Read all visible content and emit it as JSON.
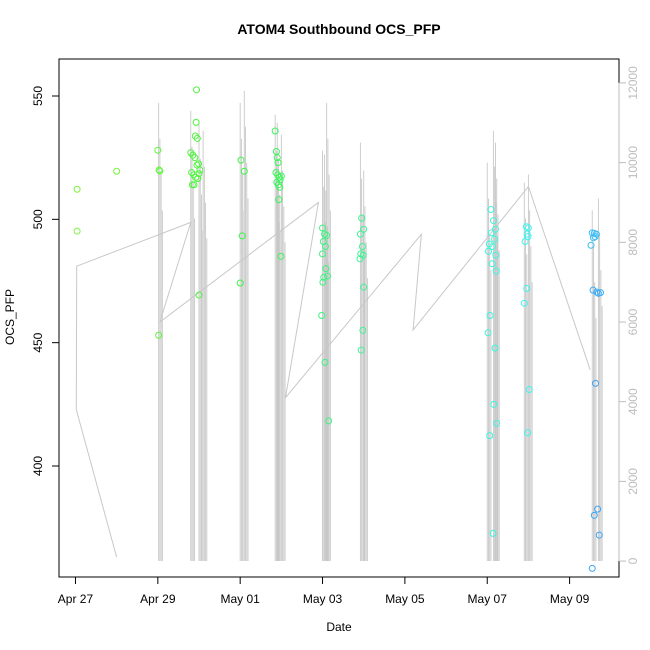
{
  "chart_data": {
    "type": "scatter",
    "title": "ATOM4 Southbound OCS_PFP",
    "xlabel": "Date",
    "ylabel": "OCS_PFP",
    "x_ticks": [
      "Apr 27",
      "Apr 29",
      "May 01",
      "May 03",
      "May 05",
      "May 07",
      "May 09"
    ],
    "x_tick_days": [
      0,
      2,
      4,
      6,
      8,
      10,
      12
    ],
    "xlim_days": [
      -0.4,
      13.2
    ],
    "y_ticks": [
      400,
      450,
      500,
      550
    ],
    "ylim": [
      355,
      565
    ],
    "y2_ticks": [
      0,
      2000,
      4000,
      6000,
      8000,
      10000,
      12000
    ],
    "y2lim": [
      -400,
      12600
    ],
    "grid": false,
    "points": [
      {
        "day": 0.04,
        "y": 512.2,
        "color": "#7df53c"
      },
      {
        "day": 0.04,
        "y": 495.2,
        "color": "#7df53c"
      },
      {
        "day": 1.0,
        "y": 519.5,
        "color": "#74f53c"
      },
      {
        "day": 2.0,
        "y": 528.0,
        "color": "#5ef53c"
      },
      {
        "day": 2.03,
        "y": 520.0,
        "color": "#5ef53c"
      },
      {
        "day": 2.05,
        "y": 519.6,
        "color": "#5ef53c"
      },
      {
        "day": 2.02,
        "y": 453.0,
        "color": "#5ef53c"
      },
      {
        "day": 2.8,
        "y": 527.0,
        "color": "#4df53c"
      },
      {
        "day": 2.85,
        "y": 526.0,
        "color": "#4df53c"
      },
      {
        "day": 2.9,
        "y": 525.0,
        "color": "#4df53c"
      },
      {
        "day": 2.95,
        "y": 522.0,
        "color": "#4df53c"
      },
      {
        "day": 2.82,
        "y": 519.0,
        "color": "#4df53c"
      },
      {
        "day": 2.87,
        "y": 518.0,
        "color": "#4df53c"
      },
      {
        "day": 2.92,
        "y": 517.0,
        "color": "#4df53c"
      },
      {
        "day": 2.97,
        "y": 516.5,
        "color": "#4df53c"
      },
      {
        "day": 3.0,
        "y": 518.5,
        "color": "#4df53c"
      },
      {
        "day": 3.02,
        "y": 520.0,
        "color": "#4df53c"
      },
      {
        "day": 2.99,
        "y": 522.5,
        "color": "#4df53c"
      },
      {
        "day": 2.84,
        "y": 514.0,
        "color": "#4df53c"
      },
      {
        "day": 2.88,
        "y": 514.0,
        "color": "#4df53c"
      },
      {
        "day": 2.91,
        "y": 533.8,
        "color": "#4df53c"
      },
      {
        "day": 2.96,
        "y": 532.8,
        "color": "#4df53c"
      },
      {
        "day": 2.93,
        "y": 539.3,
        "color": "#4df53c"
      },
      {
        "day": 2.94,
        "y": 552.5,
        "color": "#4df53c"
      },
      {
        "day": 3.0,
        "y": 469.3,
        "color": "#4df53c"
      },
      {
        "day": 4.02,
        "y": 524.0,
        "color": "#3cf548"
      },
      {
        "day": 4.1,
        "y": 519.5,
        "color": "#3cf548"
      },
      {
        "day": 4.05,
        "y": 493.3,
        "color": "#3cf548"
      },
      {
        "day": 4.0,
        "y": 474.2,
        "color": "#3cf548"
      },
      {
        "day": 4.85,
        "y": 535.8,
        "color": "#3cf55a"
      },
      {
        "day": 4.88,
        "y": 527.5,
        "color": "#3cf55a"
      },
      {
        "day": 4.9,
        "y": 525.0,
        "color": "#3cf55a"
      },
      {
        "day": 4.92,
        "y": 523.0,
        "color": "#3cf55a"
      },
      {
        "day": 4.87,
        "y": 519.0,
        "color": "#3cf55a"
      },
      {
        "day": 4.91,
        "y": 518.0,
        "color": "#3cf55a"
      },
      {
        "day": 4.95,
        "y": 517.0,
        "color": "#3cf55a"
      },
      {
        "day": 4.97,
        "y": 516.0,
        "color": "#3cf55a"
      },
      {
        "day": 4.89,
        "y": 515.0,
        "color": "#3cf55a"
      },
      {
        "day": 4.93,
        "y": 514.0,
        "color": "#3cf55a"
      },
      {
        "day": 4.96,
        "y": 513.0,
        "color": "#3cf55a"
      },
      {
        "day": 5.0,
        "y": 517.5,
        "color": "#3cf55a"
      },
      {
        "day": 4.94,
        "y": 508.0,
        "color": "#3cf55a"
      },
      {
        "day": 4.99,
        "y": 485.0,
        "color": "#3cf55a"
      },
      {
        "day": 6.0,
        "y": 496.5,
        "color": "#3cf580"
      },
      {
        "day": 6.05,
        "y": 494.0,
        "color": "#3cf580"
      },
      {
        "day": 6.1,
        "y": 493.5,
        "color": "#3cf580"
      },
      {
        "day": 6.02,
        "y": 491.0,
        "color": "#3cf580"
      },
      {
        "day": 6.07,
        "y": 489.0,
        "color": "#3cf580"
      },
      {
        "day": 6.0,
        "y": 486.0,
        "color": "#3cf580"
      },
      {
        "day": 6.08,
        "y": 480.0,
        "color": "#3cf580"
      },
      {
        "day": 6.03,
        "y": 476.5,
        "color": "#3cf580"
      },
      {
        "day": 6.12,
        "y": 477.0,
        "color": "#3cf580"
      },
      {
        "day": 6.01,
        "y": 474.5,
        "color": "#3cf580"
      },
      {
        "day": 5.98,
        "y": 461.0,
        "color": "#3cf580"
      },
      {
        "day": 6.06,
        "y": 442.0,
        "color": "#3cf580"
      },
      {
        "day": 6.15,
        "y": 418.3,
        "color": "#3cf580"
      },
      {
        "day": 6.95,
        "y": 500.5,
        "color": "#3cf594"
      },
      {
        "day": 7.0,
        "y": 496.0,
        "color": "#3cf594"
      },
      {
        "day": 6.92,
        "y": 494.0,
        "color": "#3cf594"
      },
      {
        "day": 6.97,
        "y": 489.0,
        "color": "#3cf594"
      },
      {
        "day": 6.93,
        "y": 486.0,
        "color": "#3cf594"
      },
      {
        "day": 6.99,
        "y": 485.5,
        "color": "#3cf594"
      },
      {
        "day": 6.91,
        "y": 484.0,
        "color": "#3cf594"
      },
      {
        "day": 7.0,
        "y": 472.5,
        "color": "#3cf594"
      },
      {
        "day": 6.98,
        "y": 455.0,
        "color": "#3cf594"
      },
      {
        "day": 6.94,
        "y": 447.0,
        "color": "#3cf594"
      },
      {
        "day": 10.09,
        "y": 504.0,
        "color": "#3cf5dc"
      },
      {
        "day": 10.15,
        "y": 499.5,
        "color": "#3cf5dc"
      },
      {
        "day": 10.2,
        "y": 496.0,
        "color": "#3cf5dc"
      },
      {
        "day": 10.1,
        "y": 494.5,
        "color": "#3cf5dc"
      },
      {
        "day": 10.18,
        "y": 492.0,
        "color": "#3cf5dc"
      },
      {
        "day": 10.05,
        "y": 490.0,
        "color": "#3cf5dc"
      },
      {
        "day": 10.13,
        "y": 489.0,
        "color": "#3cf5dc"
      },
      {
        "day": 10.03,
        "y": 487.0,
        "color": "#3cf5dc"
      },
      {
        "day": 10.21,
        "y": 485.5,
        "color": "#3cf5dc"
      },
      {
        "day": 10.12,
        "y": 482.0,
        "color": "#3cf5dc"
      },
      {
        "day": 10.22,
        "y": 479.0,
        "color": "#3cf5dc"
      },
      {
        "day": 10.07,
        "y": 461.0,
        "color": "#3cf5dc"
      },
      {
        "day": 10.02,
        "y": 454.0,
        "color": "#3cf5dc"
      },
      {
        "day": 10.19,
        "y": 447.8,
        "color": "#3cf5dc"
      },
      {
        "day": 10.16,
        "y": 425.0,
        "color": "#3cf5dc"
      },
      {
        "day": 10.23,
        "y": 417.3,
        "color": "#3cf5dc"
      },
      {
        "day": 10.06,
        "y": 412.3,
        "color": "#3cf5dc"
      },
      {
        "day": 10.14,
        "y": 372.7,
        "color": "#3cf5dc"
      },
      {
        "day": 10.95,
        "y": 497.0,
        "color": "#3cf5ef"
      },
      {
        "day": 11.0,
        "y": 496.5,
        "color": "#3cf5ef"
      },
      {
        "day": 10.97,
        "y": 494.0,
        "color": "#3cf5ef"
      },
      {
        "day": 10.99,
        "y": 493.0,
        "color": "#3cf5ef"
      },
      {
        "day": 10.92,
        "y": 491.0,
        "color": "#3cf5ef"
      },
      {
        "day": 10.96,
        "y": 472.0,
        "color": "#3cf5ef"
      },
      {
        "day": 10.9,
        "y": 466.0,
        "color": "#3cf5ef"
      },
      {
        "day": 11.02,
        "y": 431.0,
        "color": "#3cf5ef"
      },
      {
        "day": 10.98,
        "y": 413.5,
        "color": "#3cf5ef"
      },
      {
        "day": 12.55,
        "y": 494.5,
        "color": "#3cbdf5"
      },
      {
        "day": 12.6,
        "y": 494.3,
        "color": "#3cbdf5"
      },
      {
        "day": 12.65,
        "y": 494.0,
        "color": "#3cbdf5"
      },
      {
        "day": 12.58,
        "y": 492.5,
        "color": "#3cbdf5"
      },
      {
        "day": 12.62,
        "y": 493.0,
        "color": "#3cbdf5"
      },
      {
        "day": 12.52,
        "y": 489.5,
        "color": "#3cbdf5"
      },
      {
        "day": 12.57,
        "y": 471.3,
        "color": "#3cacf5"
      },
      {
        "day": 12.66,
        "y": 470.5,
        "color": "#3cacf5"
      },
      {
        "day": 12.7,
        "y": 470.0,
        "color": "#3cacf5"
      },
      {
        "day": 12.75,
        "y": 470.3,
        "color": "#3cacf5"
      },
      {
        "day": 12.63,
        "y": 433.5,
        "color": "#3ca4f5"
      },
      {
        "day": 12.68,
        "y": 382.5,
        "color": "#3ca4f5"
      },
      {
        "day": 12.6,
        "y": 380.0,
        "color": "#3ca4f5"
      },
      {
        "day": 12.72,
        "y": 372.0,
        "color": "#3ca4f5"
      },
      {
        "day": 12.55,
        "y": 358.5,
        "color": "#3ca4f5"
      }
    ],
    "altitude_path": [
      [
        0.02,
        3800
      ],
      [
        0.03,
        7400
      ],
      [
        2.8,
        8500
      ],
      [
        2.05,
        6000
      ],
      [
        5.9,
        9000
      ],
      [
        5.1,
        4100
      ],
      [
        8.4,
        8200
      ],
      [
        8.2,
        5800
      ],
      [
        11.0,
        9400
      ],
      [
        12.5,
        4800
      ]
    ],
    "altitude_spikes": [
      {
        "day": 2.02,
        "top": 11500
      },
      {
        "day": 2.8,
        "top": 11300
      },
      {
        "day": 3.0,
        "top": 11000
      },
      {
        "day": 3.1,
        "top": 10800
      },
      {
        "day": 4.0,
        "top": 11500
      },
      {
        "day": 4.1,
        "top": 11800
      },
      {
        "day": 4.85,
        "top": 11200
      },
      {
        "day": 4.9,
        "top": 11000
      },
      {
        "day": 5.0,
        "top": 10700
      },
      {
        "day": 6.0,
        "top": 10300
      },
      {
        "day": 6.1,
        "top": 11500
      },
      {
        "day": 6.05,
        "top": 10200
      },
      {
        "day": 6.92,
        "top": 10500
      },
      {
        "day": 7.0,
        "top": 9800
      },
      {
        "day": 10.0,
        "top": 10000
      },
      {
        "day": 10.15,
        "top": 10800
      },
      {
        "day": 10.2,
        "top": 10500
      },
      {
        "day": 10.9,
        "top": 9500
      },
      {
        "day": 11.0,
        "top": 9700
      },
      {
        "day": 12.55,
        "top": 8800
      },
      {
        "day": 12.7,
        "top": 9100
      }
    ],
    "colors": {
      "altitude_line": "#c8c8c8",
      "right_axis": "#bdbdbd"
    }
  }
}
